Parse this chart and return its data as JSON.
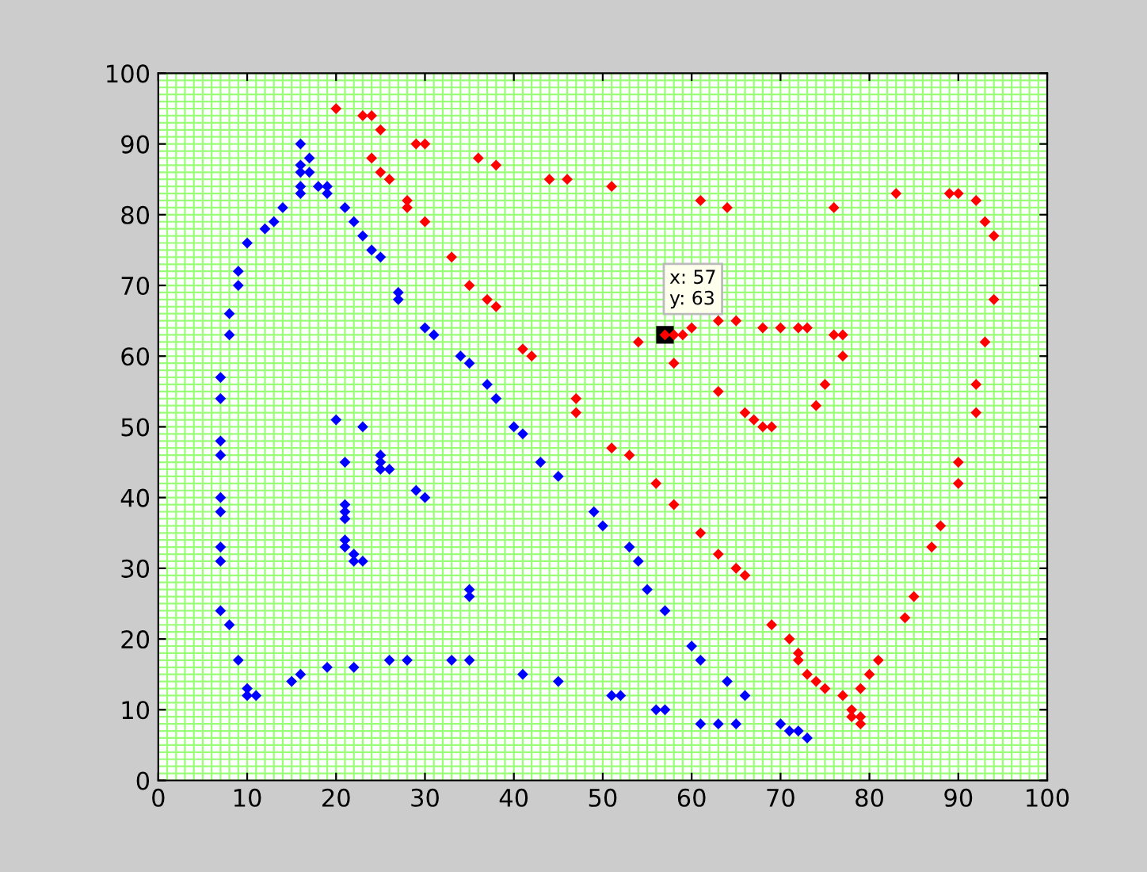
{
  "chart_data": {
    "type": "scatter",
    "xlim": [
      0,
      100
    ],
    "ylim": [
      0,
      100
    ],
    "xticks": [
      0,
      10,
      20,
      30,
      40,
      50,
      60,
      70,
      80,
      90,
      100
    ],
    "yticks": [
      0,
      10,
      20,
      30,
      40,
      50,
      60,
      70,
      80,
      90,
      100
    ],
    "grid": true,
    "marker": "diamond",
    "series": [
      {
        "color": "#0000ff",
        "x": [
          16,
          17,
          16,
          16,
          17,
          16,
          16,
          18,
          19,
          19,
          21,
          22,
          23,
          24,
          25,
          27,
          27,
          30,
          31,
          34,
          35,
          37,
          38,
          40,
          41,
          43,
          45,
          49,
          50,
          53,
          54,
          55,
          57,
          60,
          61,
          64,
          66,
          14,
          13,
          12,
          10,
          9,
          9,
          8,
          8,
          7,
          7,
          7,
          7,
          7,
          7,
          7,
          7,
          7,
          8,
          9,
          10,
          10,
          11,
          15,
          16,
          19,
          22,
          26,
          28,
          33,
          35,
          41,
          45,
          51,
          52,
          56,
          57,
          61,
          63,
          65,
          70,
          71,
          72,
          73,
          20,
          23,
          21,
          25,
          25,
          25,
          26,
          29,
          30,
          21,
          21,
          21,
          21,
          21,
          22,
          22,
          23,
          35,
          35
        ],
        "values": [
          90,
          88,
          87,
          86,
          86,
          84,
          83,
          84,
          84,
          83,
          81,
          79,
          77,
          75,
          74,
          69,
          68,
          64,
          63,
          60,
          59,
          56,
          54,
          50,
          49,
          45,
          43,
          38,
          36,
          33,
          31,
          27,
          24,
          19,
          17,
          14,
          12,
          81,
          79,
          78,
          76,
          72,
          70,
          66,
          63,
          57,
          54,
          48,
          46,
          40,
          38,
          33,
          31,
          24,
          22,
          17,
          13,
          12,
          12,
          14,
          15,
          16,
          16,
          17,
          17,
          17,
          17,
          15,
          14,
          12,
          12,
          10,
          10,
          8,
          8,
          8,
          8,
          7,
          7,
          6,
          51,
          50,
          45,
          46,
          45,
          44,
          44,
          41,
          40,
          39,
          38,
          37,
          34,
          33,
          32,
          31,
          31,
          27,
          26
        ]
      },
      {
        "color": "#ff0000",
        "x": [
          20,
          23,
          24,
          25,
          29,
          30,
          24,
          25,
          26,
          28,
          28,
          30,
          33,
          35,
          37,
          38,
          41,
          42,
          47,
          47,
          51,
          53,
          56,
          58,
          61,
          63,
          65,
          66,
          69,
          71,
          72,
          72,
          73,
          74,
          75,
          77,
          78,
          78,
          79,
          79,
          79,
          80,
          81,
          84,
          85,
          87,
          88,
          90,
          90,
          92,
          92,
          93,
          94,
          94,
          93,
          92,
          90,
          89,
          83,
          76,
          64,
          61,
          51,
          46,
          44,
          38,
          36,
          54,
          57,
          58,
          59,
          60,
          63,
          65,
          68,
          70,
          72,
          73,
          76,
          77,
          77,
          75,
          74,
          58,
          63,
          66,
          67,
          68,
          69
        ],
        "values": [
          95,
          94,
          94,
          92,
          90,
          90,
          88,
          86,
          85,
          82,
          81,
          79,
          74,
          70,
          68,
          67,
          61,
          60,
          54,
          52,
          47,
          46,
          42,
          39,
          35,
          32,
          30,
          29,
          22,
          20,
          18,
          17,
          15,
          14,
          13,
          12,
          10,
          9,
          9,
          8,
          13,
          15,
          17,
          23,
          26,
          33,
          36,
          42,
          45,
          52,
          56,
          62,
          68,
          77,
          79,
          82,
          83,
          83,
          83,
          81,
          81,
          82,
          84,
          85,
          85,
          87,
          88,
          62,
          63,
          63,
          63,
          64,
          65,
          65,
          64,
          64,
          64,
          64,
          63,
          63,
          60,
          56,
          53,
          59,
          55,
          52,
          51,
          50,
          50
        ]
      }
    ],
    "annotations": [
      {
        "text": "x: 57\ny: 63",
        "x": 57,
        "y": 63
      }
    ]
  }
}
